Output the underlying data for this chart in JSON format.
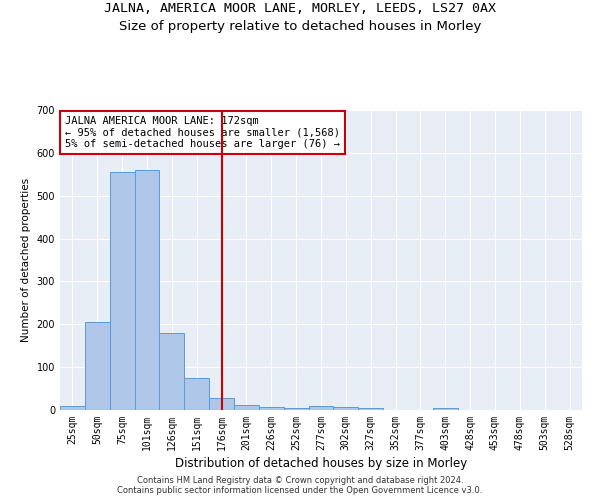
{
  "title_main": "JALNA, AMERICA MOOR LANE, MORLEY, LEEDS, LS27 0AX",
  "title_sub": "Size of property relative to detached houses in Morley",
  "xlabel": "Distribution of detached houses by size in Morley",
  "ylabel": "Number of detached properties",
  "bins": [
    "25sqm",
    "50sqm",
    "75sqm",
    "101sqm",
    "126sqm",
    "151sqm",
    "176sqm",
    "201sqm",
    "226sqm",
    "252sqm",
    "277sqm",
    "302sqm",
    "327sqm",
    "352sqm",
    "377sqm",
    "403sqm",
    "428sqm",
    "453sqm",
    "478sqm",
    "503sqm",
    "528sqm"
  ],
  "values": [
    10,
    205,
    555,
    560,
    180,
    75,
    28,
    12,
    8,
    5,
    10,
    7,
    5,
    0,
    0,
    5,
    0,
    0,
    0,
    0,
    0
  ],
  "bar_color": "#aec6e8",
  "bar_edge_color": "#5b9bd5",
  "vline_x_index": 6,
  "vline_color": "#cc0000",
  "annotation_line1": "JALNA AMERICA MOOR LANE: 172sqm",
  "annotation_line2": "← 95% of detached houses are smaller (1,568)",
  "annotation_line3": "5% of semi-detached houses are larger (76) →",
  "annotation_box_edge": "#cc0000",
  "ylim": [
    0,
    700
  ],
  "yticks": [
    0,
    100,
    200,
    300,
    400,
    500,
    600,
    700
  ],
  "footer_line1": "Contains HM Land Registry data © Crown copyright and database right 2024.",
  "footer_line2": "Contains public sector information licensed under the Open Government Licence v3.0.",
  "plot_bg": "#e8eef6",
  "title_main_fontsize": 9.5,
  "title_sub_fontsize": 9.5,
  "xlabel_fontsize": 8.5,
  "ylabel_fontsize": 7.5,
  "tick_fontsize": 7,
  "annotation_fontsize": 7.5,
  "footer_fontsize": 6
}
